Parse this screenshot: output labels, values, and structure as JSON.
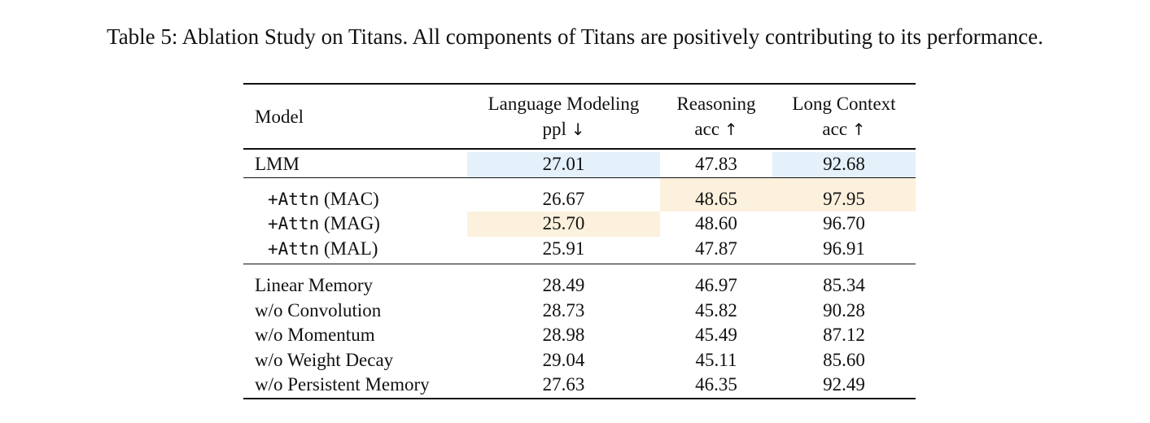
{
  "caption": "Table 5: Ablation Study on Titans. All components of Titans are positively contributing to its performance.",
  "header": {
    "model": "Model",
    "lm_title": "Language Modeling",
    "lm_metric": "ppl",
    "lm_arrow": "↓",
    "reasoning_title": "Reasoning",
    "reasoning_metric": "acc",
    "reasoning_arrow": "↑",
    "long_title": "Long Context",
    "long_metric": "acc",
    "long_arrow": "↑"
  },
  "base_row": {
    "name": "LMM",
    "ppl": "27.01",
    "reasoning": "47.83",
    "long": "92.68"
  },
  "attn_rows": [
    {
      "prefix": "+Attn",
      "suffix": "(MAC)",
      "ppl": "26.67",
      "reasoning": "48.65",
      "long": "97.95"
    },
    {
      "prefix": "+Attn",
      "suffix": "(MAG)",
      "ppl": "25.70",
      "reasoning": "48.60",
      "long": "96.70"
    },
    {
      "prefix": "+Attn",
      "suffix": "(MAL)",
      "ppl": "25.91",
      "reasoning": "47.87",
      "long": "96.91"
    }
  ],
  "ablation_rows": [
    {
      "name": "Linear Memory",
      "ppl": "28.49",
      "reasoning": "46.97",
      "long": "85.34"
    },
    {
      "name": "w/o Convolution",
      "ppl": "28.73",
      "reasoning": "45.82",
      "long": "90.28"
    },
    {
      "name": "w/o Momentum",
      "ppl": "28.98",
      "reasoning": "45.49",
      "long": "87.12"
    },
    {
      "name": "w/o Weight Decay",
      "ppl": "29.04",
      "reasoning": "45.11",
      "long": "85.60"
    },
    {
      "name": "w/o Persistent Memory",
      "ppl": "27.63",
      "reasoning": "46.35",
      "long": "92.49"
    }
  ],
  "highlight_colors": {
    "base": "#e4f0fa",
    "best": "#fcf1dd"
  }
}
